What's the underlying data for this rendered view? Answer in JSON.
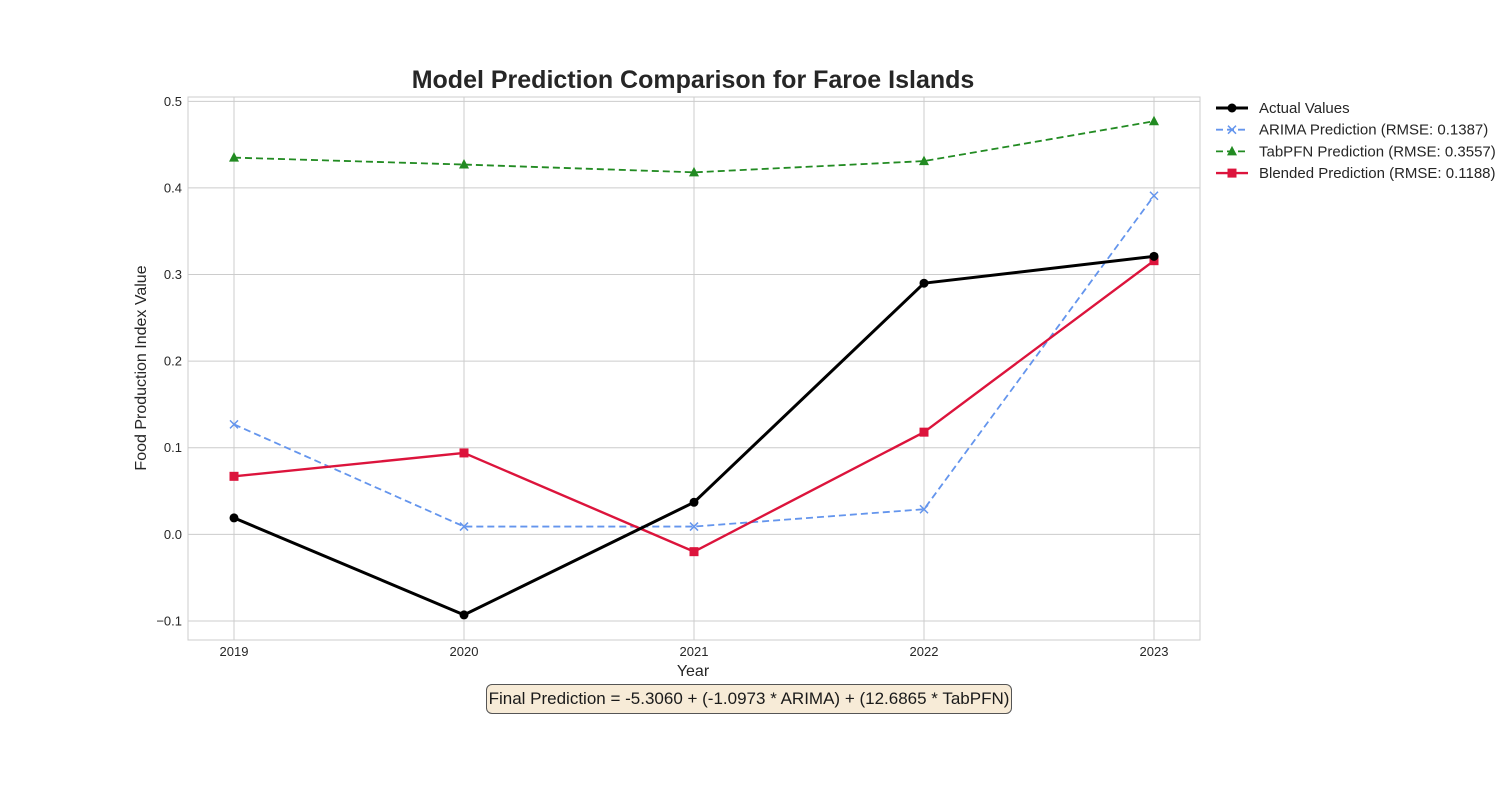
{
  "chart_data": {
    "type": "line",
    "title": "Model Prediction Comparison for Faroe Islands",
    "xlabel": "Year",
    "ylabel": "Food Production Index Value",
    "x": [
      "2019",
      "2020",
      "2021",
      "2022",
      "2023"
    ],
    "ylim": [
      -0.122,
      0.505
    ],
    "yticks": [
      -0.1,
      0.0,
      0.1,
      0.2,
      0.3,
      0.4,
      0.5
    ],
    "ytick_labels": [
      "−0.1",
      "0.0",
      "0.1",
      "0.2",
      "0.3",
      "0.4",
      "0.5"
    ],
    "grid": true,
    "legend_position": "outside-top-right",
    "series": [
      {
        "name": "Actual Values",
        "values": [
          0.019,
          -0.093,
          0.037,
          0.29,
          0.321
        ],
        "color": "#000000",
        "style": "solid",
        "marker": "circle"
      },
      {
        "name": "ARIMA Prediction (RMSE: 0.1387)",
        "values": [
          0.127,
          0.009,
          0.009,
          0.029,
          0.391
        ],
        "color": "#6495ed",
        "style": "dashed",
        "marker": "x"
      },
      {
        "name": "TabPFN Prediction (RMSE: 0.3557)",
        "values": [
          0.435,
          0.427,
          0.418,
          0.431,
          0.477
        ],
        "color": "#228b22",
        "style": "dashed",
        "marker": "triangle"
      },
      {
        "name": "Blended Prediction (RMSE: 0.1188)",
        "values": [
          0.067,
          0.094,
          -0.02,
          0.118,
          0.316
        ],
        "color": "#dc143c",
        "style": "solid",
        "marker": "square"
      }
    ],
    "annotation": "Final Prediction = -5.3060 + (-1.0973 * ARIMA) + (12.6865 * TabPFN)"
  }
}
